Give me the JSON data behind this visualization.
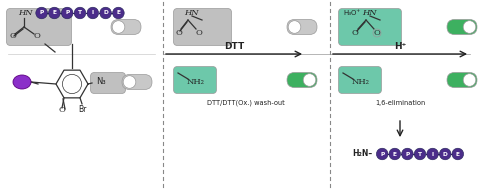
{
  "bg_color": "#ffffff",
  "peptide_color": "#4B2D8A",
  "teal_color": "#6DC8AA",
  "teal_dark": "#3DAA88",
  "gray_box": "#C0C0C0",
  "green_color": "#3DB060",
  "arrow_color": "#222222",
  "dashed_color": "#888888",
  "text_color": "#222222",
  "purple_ball": "#8B2FC9",
  "peptide_letters": [
    "P",
    "E",
    "P",
    "T",
    "I",
    "D",
    "E"
  ],
  "step1_label": "DTT",
  "step2_label": "H⁺",
  "bottom1_label": "DTT/DTT(Ox.) wash-out",
  "bottom2_label": "1,6-elimination",
  "final_label": "H₂N–",
  "bond_color": "#333333"
}
